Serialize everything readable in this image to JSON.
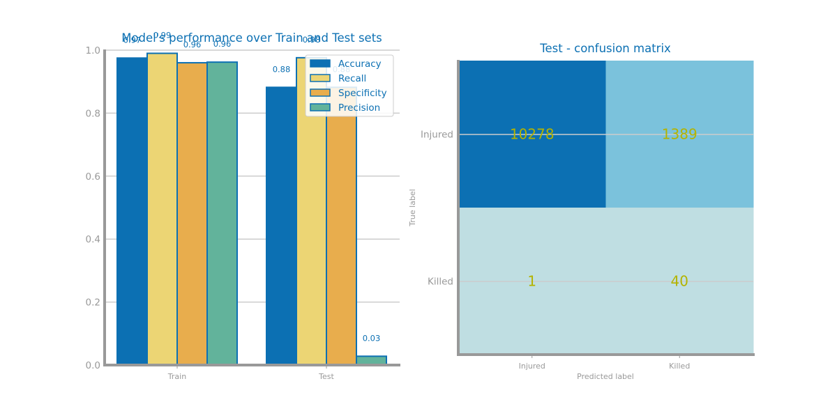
{
  "colors": {
    "title": "#0c70b3",
    "tick": "#999999",
    "spine": "#999999",
    "grid": "#cccccc",
    "bar_label": "#0c70b3",
    "cm_text": "#b3b300",
    "cm_high": "#0c70b3",
    "cm_mid": "#7bc2dc",
    "cm_low": "#bfdee2"
  },
  "chart_data": [
    {
      "type": "bar",
      "title": "Model's performance over Train and Test sets",
      "categories": [
        "Train",
        "Test"
      ],
      "ylim": [
        0,
        1.0
      ],
      "yticks": [
        "0.0",
        "0.2",
        "0.4",
        "0.6",
        "0.8",
        "1.0"
      ],
      "grid": true,
      "legend_position": "top-right",
      "series": [
        {
          "name": "Accuracy",
          "color": "#0c70b3",
          "values": [
            0.975,
            0.882
          ],
          "labels": [
            "0.97",
            "0.88"
          ]
        },
        {
          "name": "Recall",
          "color": "#ecd574",
          "values": [
            0.99,
            0.976
          ],
          "labels": [
            "0.99",
            "0.98"
          ]
        },
        {
          "name": "Specificity",
          "color": "#e8ad4d",
          "values": [
            0.96,
            0.882
          ],
          "labels": [
            "0.96",
            "0.88"
          ]
        },
        {
          "name": "Precision",
          "color": "#62b39b",
          "values": [
            0.962,
            0.028
          ],
          "labels": [
            "0.96",
            "0.03"
          ]
        }
      ]
    },
    {
      "type": "heatmap",
      "title": "Test - confusion matrix",
      "xlabel": "Predicted label",
      "ylabel": "True label",
      "x_categories": [
        "Injured",
        "Killed"
      ],
      "y_categories": [
        "Injured",
        "Killed"
      ],
      "values": [
        [
          10278,
          1389
        ],
        [
          1,
          40
        ]
      ],
      "cell_labels": [
        [
          "10278",
          "1389"
        ],
        [
          "1",
          "40"
        ]
      ],
      "cell_colors": [
        [
          "#0c70b3",
          "#7bc2dc"
        ],
        [
          "#bfdee2",
          "#bfdee2"
        ]
      ]
    }
  ]
}
